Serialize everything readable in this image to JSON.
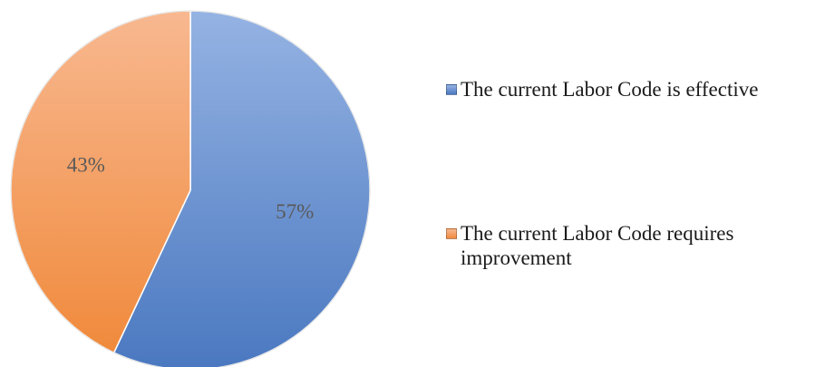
{
  "chart_data": {
    "type": "pie",
    "categories": [
      "The current Labor Code is effective",
      "The current Labor Code requires improvement"
    ],
    "values": [
      57,
      43
    ],
    "labels": [
      "57%",
      "43%"
    ],
    "colors": [
      "#4a78c0",
      "#f08a3c"
    ],
    "colors_light": [
      "#95b3e3",
      "#f8b890"
    ],
    "start_angle_deg": 0,
    "direction": "clockwise",
    "legend_position": "right",
    "title": ""
  }
}
